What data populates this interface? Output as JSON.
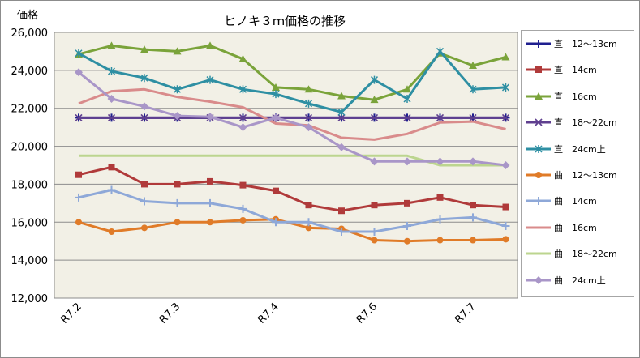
{
  "chart_data": {
    "type": "line",
    "title": "ヒノキ３ｍ価格の推移",
    "ylabel": "価格",
    "xlabel": "",
    "ylim": [
      12000,
      26000
    ],
    "y_ticks": [
      "26,000",
      "24,000",
      "22,000",
      "20,000",
      "18,000",
      "16,000",
      "14,000",
      "12,000"
    ],
    "x_ticks": [
      "R7.2",
      "R7.3",
      "R7.4",
      "R7.6",
      "R7.7"
    ],
    "n_points": 14,
    "grid": "horizontal",
    "legend_position": "right",
    "series": [
      {
        "name": "直　12～13cm",
        "color": "#1f1f8f",
        "marker": "plus",
        "values": [
          21500,
          21500,
          21500,
          21500,
          21500,
          21500,
          21500,
          21500,
          21500,
          21500,
          21500,
          21500,
          21500,
          21500
        ]
      },
      {
        "name": "直　14cm",
        "color": "#b03a3a",
        "marker": "square",
        "values": [
          18500,
          18900,
          18000,
          18000,
          18150,
          17950,
          17650,
          16900,
          16600,
          16900,
          17000,
          17300,
          16900,
          16800
        ]
      },
      {
        "name": "直　16cm",
        "color": "#7aa33a",
        "marker": "triangle",
        "values": [
          24850,
          25300,
          25100,
          25000,
          25300,
          24600,
          23100,
          23000,
          22650,
          22450,
          23000,
          24900,
          24250,
          24700
        ]
      },
      {
        "name": "直　18～22cm",
        "color": "#5f3f8f",
        "marker": "x",
        "values": [
          21500,
          21500,
          21500,
          21500,
          21500,
          21500,
          21500,
          21500,
          21500,
          21500,
          21500,
          21500,
          21500,
          21500
        ]
      },
      {
        "name": "直　24cm上",
        "color": "#2e8fa3",
        "marker": "star",
        "values": [
          24900,
          23950,
          23600,
          23000,
          23500,
          23000,
          22750,
          22250,
          21800,
          23500,
          22500,
          25000,
          23000,
          23100
        ]
      },
      {
        "name": "曲　12～13cm",
        "color": "#e07b28",
        "marker": "circle",
        "values": [
          16000,
          15500,
          15700,
          16000,
          16000,
          16100,
          16150,
          15700,
          15650,
          15050,
          15000,
          15050,
          15050,
          15100
        ]
      },
      {
        "name": "曲　14cm",
        "color": "#8ea8d8",
        "marker": "plus",
        "values": [
          17300,
          17700,
          17100,
          17000,
          17000,
          16700,
          16000,
          16000,
          15500,
          15500,
          15800,
          16150,
          16250,
          15800
        ]
      },
      {
        "name": "曲　16cm",
        "color": "#d98b8b",
        "marker": "none",
        "values": [
          22250,
          22900,
          23000,
          22600,
          22350,
          22050,
          21200,
          21100,
          20450,
          20350,
          20650,
          21250,
          21300,
          20900
        ]
      },
      {
        "name": "曲　18～22cm",
        "color": "#bcd58f",
        "marker": "none",
        "values": [
          19500,
          19500,
          19500,
          19500,
          19500,
          19500,
          19500,
          19500,
          19500,
          19500,
          19500,
          19000,
          19000,
          19000
        ]
      },
      {
        "name": "曲　24cm上",
        "color": "#a996c8",
        "marker": "diamond",
        "values": [
          23900,
          22500,
          22100,
          21600,
          21550,
          21000,
          21500,
          21000,
          19950,
          19200,
          19200,
          19200,
          19200,
          19000
        ]
      }
    ]
  }
}
